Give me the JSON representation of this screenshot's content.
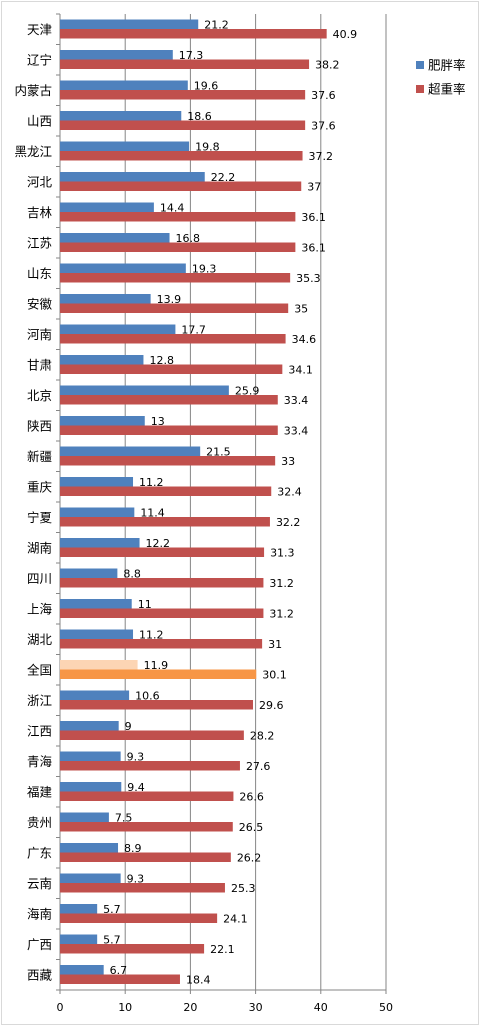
{
  "chart_data": {
    "type": "bar",
    "orientation": "horizontal",
    "categories": [
      "天津",
      "辽宁",
      "内蒙古",
      "山西",
      "黑龙江",
      "河北",
      "吉林",
      "江苏",
      "山东",
      "安徽",
      "河南",
      "甘肃",
      "北京",
      "陕西",
      "新疆",
      "重庆",
      "宁夏",
      "湖南",
      "四川",
      "上海",
      "湖北",
      "全国",
      "浙江",
      "江西",
      "青海",
      "福建",
      "贵州",
      "广东",
      "云南",
      "海南",
      "广西",
      "西藏"
    ],
    "series": [
      {
        "name": "肥胖率",
        "color": "#4f81bd",
        "values": [
          21.2,
          17.3,
          19.6,
          18.6,
          19.8,
          22.2,
          14.4,
          16.8,
          19.3,
          13.9,
          17.7,
          12.8,
          25.9,
          13,
          21.5,
          11.2,
          11.4,
          12.2,
          8.8,
          11,
          11.2,
          11.9,
          10.6,
          9,
          9.3,
          9.4,
          7.5,
          8.9,
          9.3,
          5.7,
          5.7,
          6.7
        ],
        "labels": [
          "21.2",
          "17.3",
          "19.6",
          "18.6",
          "19.8",
          "22.2",
          "14.4",
          "16.8",
          "19.3",
          "13.9",
          "17.7",
          "12.8",
          "25.9",
          "13",
          "21.5",
          "11.2",
          "11.4",
          "12.2",
          "8.8",
          "11",
          "11.2",
          "11.9",
          "10.6",
          "9",
          "9.3",
          "9.4",
          "7.5",
          "8.9",
          "9.3",
          "5.7",
          "5.7",
          "6.7"
        ]
      },
      {
        "name": "超重率",
        "color": "#c0504d",
        "values": [
          40.9,
          38.2,
          37.6,
          37.6,
          37.2,
          37,
          36.1,
          36.1,
          35.3,
          35,
          34.6,
          34.1,
          33.4,
          33.4,
          33,
          32.4,
          32.2,
          31.3,
          31.2,
          31.2,
          31,
          30.1,
          29.6,
          28.2,
          27.6,
          26.6,
          26.5,
          26.2,
          25.3,
          24.1,
          22.1,
          18.4
        ],
        "labels": [
          "40.9",
          "38.2",
          "37.6",
          "37.6",
          "37.2",
          "37",
          "36.1",
          "36.1",
          "35.3",
          "35",
          "34.6",
          "34.1",
          "33.4",
          "33.4",
          "33",
          "32.4",
          "32.2",
          "31.3",
          "31.2",
          "31.2",
          "31",
          "30.1",
          "29.6",
          "28.2",
          "27.6",
          "26.6",
          "26.5",
          "26.2",
          "25.3",
          "24.1",
          "22.1",
          "18.4"
        ]
      }
    ],
    "highlight": {
      "category": "全国",
      "colors": [
        "#fcd5b4",
        "#f79646"
      ]
    },
    "xlim": [
      0,
      50
    ],
    "xticks": [
      "0",
      "10",
      "20",
      "30",
      "40",
      "50"
    ],
    "grid": "vertical",
    "legend": "right",
    "title": "",
    "xlabel": "",
    "ylabel": ""
  }
}
